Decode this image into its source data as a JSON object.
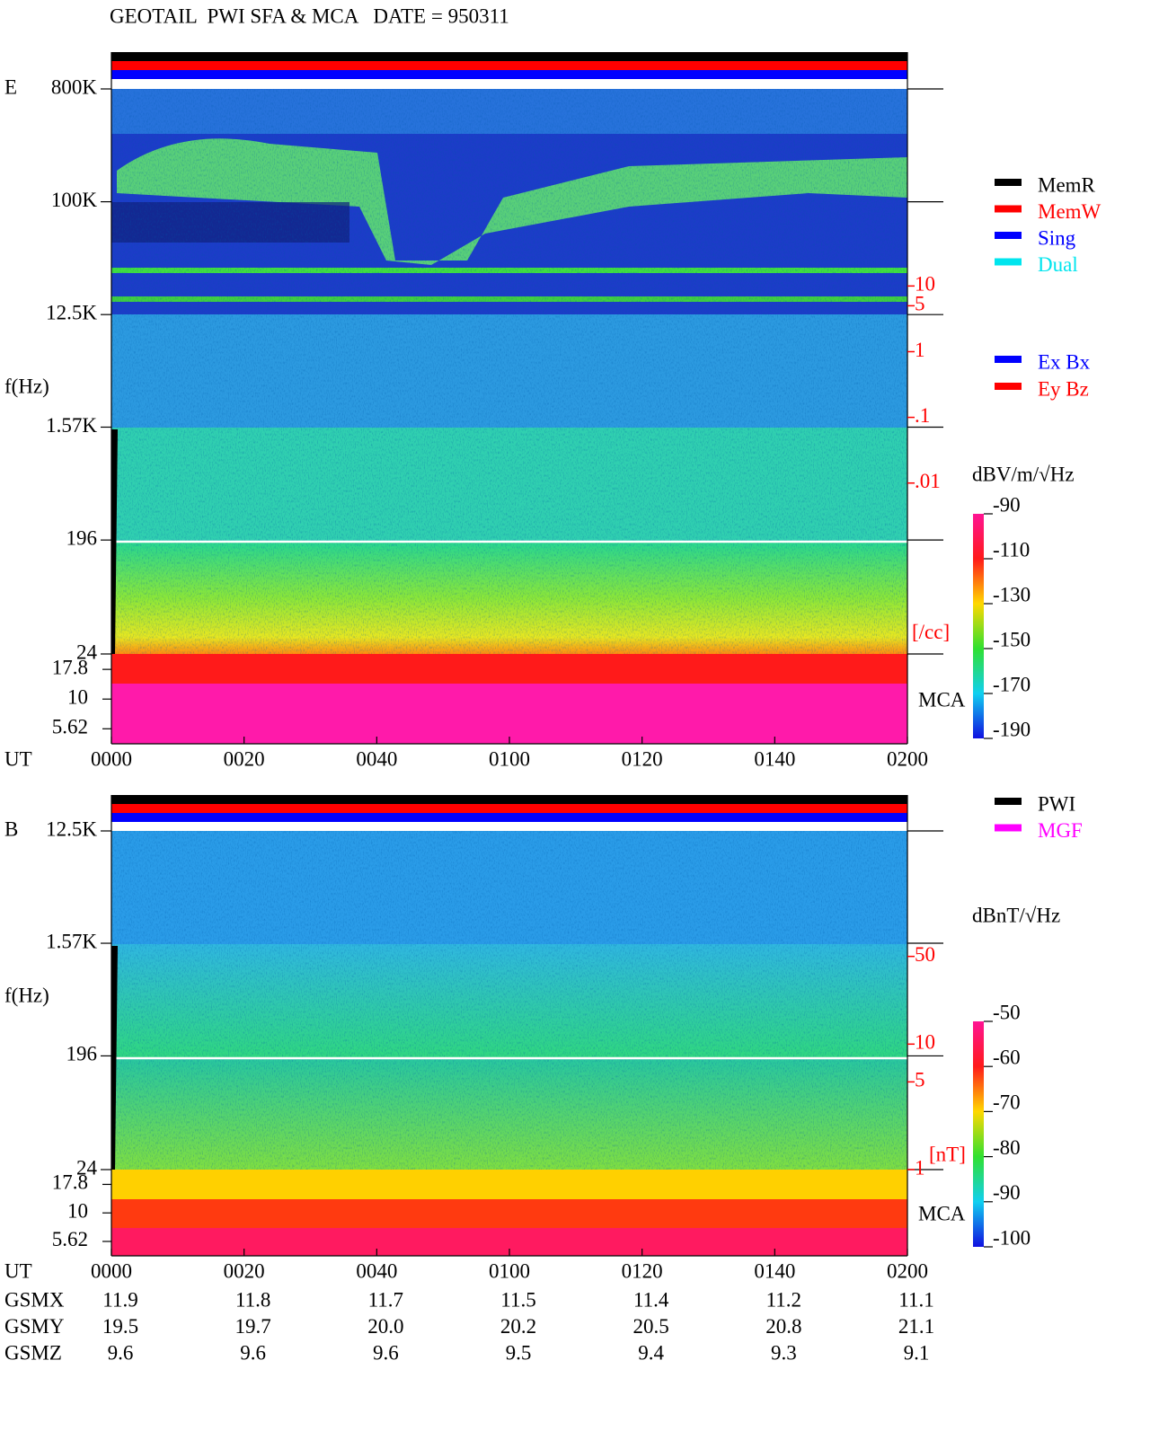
{
  "title": "GEOTAIL  PWI SFA & MCA   DATE = 950311",
  "chart_data": [
    {
      "type": "spectrogram",
      "panel_label": "E",
      "ylabel": "f(Hz)",
      "yscale": "log",
      "ylim": [
        24,
        800000
      ],
      "yticks": [
        {
          "value": 800000,
          "label": "800K"
        },
        {
          "value": 100000,
          "label": "100K"
        },
        {
          "value": 12500,
          "label": "12.5K"
        },
        {
          "value": 1570,
          "label": "1.57K"
        },
        196,
        24
      ],
      "mca_label": "MCA",
      "mca_ylim": [
        4.2,
        24
      ],
      "mca_yticks": [
        17.8,
        10,
        5.62
      ],
      "xlabel": "UT",
      "xlim": [
        0,
        120
      ],
      "xticks": [
        {
          "value": 0,
          "label": "0000"
        },
        {
          "value": 20,
          "label": "0020"
        },
        {
          "value": 40,
          "label": "0040"
        },
        {
          "value": 60,
          "label": "0100"
        },
        {
          "value": 80,
          "label": "0120"
        },
        {
          "value": 100,
          "label": "0140"
        },
        {
          "value": 120,
          "label": "0200"
        }
      ],
      "y2lim": [
        2.5e-05,
        10000
      ],
      "y2ticks": [
        10,
        5,
        1,
        {
          "value": 0.1,
          "label": ".1"
        },
        {
          "value": 0.01,
          "label": ".01"
        }
      ],
      "y2label": "[/cc]",
      "y2color": "#ff0000",
      "legend": [
        {
          "name": "MemR",
          "color": "#000000"
        },
        {
          "name": "MemW",
          "color": "#ff0000"
        },
        {
          "name": "Sing",
          "color": "#0000ff"
        },
        {
          "name": "Dual",
          "color": "#00e5ee"
        }
      ],
      "legend2": [
        {
          "name": "Ex Bx",
          "color": "#0000ff"
        },
        {
          "name": "Ey Bz",
          "color": "#ff0000"
        }
      ],
      "colorbar": {
        "label": "dBV/m/√Hz",
        "lim": [
          -190,
          -90
        ],
        "ticks": [
          -90,
          -110,
          -130,
          -150,
          -170,
          -190
        ]
      }
    },
    {
      "type": "spectrogram",
      "panel_label": "B",
      "ylabel": "f(Hz)",
      "yscale": "log",
      "ylim": [
        24,
        12500
      ],
      "yticks": [
        {
          "value": 12500,
          "label": "12.5K"
        },
        {
          "value": 1570,
          "label": "1.57K"
        },
        196,
        24
      ],
      "mca_label": "MCA",
      "mca_ylim": [
        4.2,
        24
      ],
      "mca_yticks": [
        17.8,
        10,
        5.62
      ],
      "xlabel": "UT",
      "xlim": [
        0,
        120
      ],
      "xticks": [
        {
          "value": 0,
          "label": "0000"
        },
        {
          "value": 20,
          "label": "0020"
        },
        {
          "value": 40,
          "label": "0040"
        },
        {
          "value": 60,
          "label": "0100"
        },
        {
          "value": 80,
          "label": "0120"
        },
        {
          "value": 100,
          "label": "0140"
        },
        {
          "value": 120,
          "label": "0200"
        }
      ],
      "y2lim": [
        1,
        500
      ],
      "y2ticks": [
        50,
        10,
        5,
        1
      ],
      "y2label": "[nT]",
      "y2color": "#ff0000",
      "legend": [
        {
          "name": "PWI",
          "color": "#000000"
        },
        {
          "name": "MGF",
          "color": "#ff00ff"
        }
      ],
      "colorbar": {
        "label": "dBnT/√Hz",
        "lim": [
          -100,
          -50
        ],
        "ticks": [
          -50,
          -60,
          -70,
          -80,
          -90,
          -100
        ]
      }
    }
  ],
  "orbit": {
    "rows": [
      {
        "name": "GSMX",
        "values": [
          "11.9",
          "11.8",
          "11.7",
          "11.5",
          "11.4",
          "11.2",
          "11.1"
        ]
      },
      {
        "name": "GSMY",
        "values": [
          "19.5",
          "19.7",
          "20.0",
          "20.2",
          "20.5",
          "20.8",
          "21.1"
        ]
      },
      {
        "name": "GSMZ",
        "values": [
          "9.6",
          "9.6",
          "9.6",
          "9.5",
          "9.4",
          "9.3",
          "9.1"
        ]
      }
    ]
  }
}
